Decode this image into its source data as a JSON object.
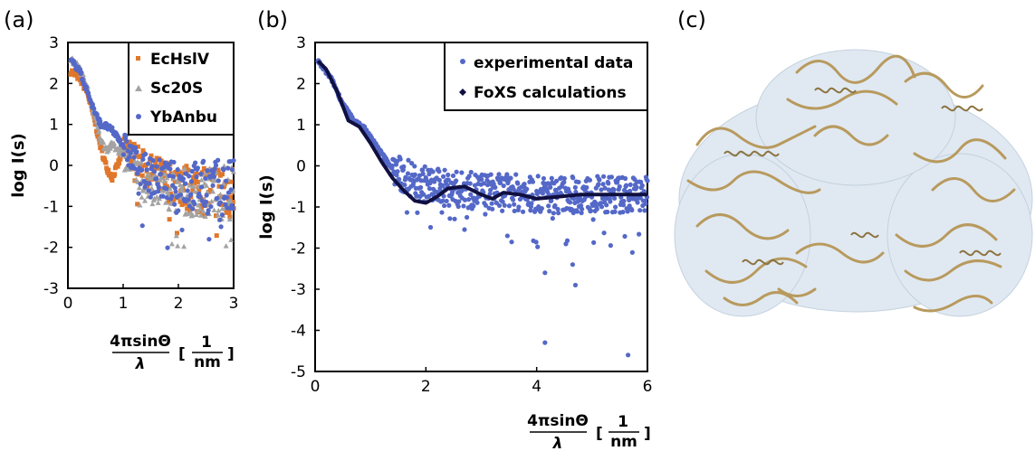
{
  "figure": {
    "panel_a_label": "(a)",
    "panel_b_label": "(b)",
    "panel_c_label": "(c)",
    "xlabel_numerator": "4πsinΘ",
    "xlabel_denominator": "λ",
    "xlabel_unit_open": "[",
    "xlabel_unit_numerator": "1",
    "xlabel_unit_denominator": "nm",
    "xlabel_unit_close": "]",
    "panel_c_image": "protein-ribbon-structure-with-surface"
  },
  "colors": {
    "EcHslV": "#e0772b",
    "Sc20S": "#a3a3a3",
    "YbAnbu": "#5468c8",
    "experimental": "#5468c8",
    "FoXS": "#101040",
    "protein": "#c9b07a",
    "surface": "#c8d8e8"
  },
  "chart_data": [
    {
      "panel": "(a)",
      "type": "scatter",
      "ylabel": "log I(s)",
      "xlim": [
        0,
        3
      ],
      "ylim": [
        -3,
        3
      ],
      "x_ticks": [
        "0",
        "1",
        "2",
        "3"
      ],
      "y_ticks": [
        "-3",
        "-2",
        "-1",
        "0",
        "1",
        "2",
        "3"
      ],
      "legend": "top-right",
      "series": [
        {
          "name": "EcHslV",
          "marker": "square",
          "x": [
            0.05,
            0.2,
            0.35,
            0.5,
            0.6,
            0.7,
            0.8,
            0.9,
            1.0,
            1.1,
            1.2,
            1.4,
            1.6,
            1.8,
            2.0,
            2.2,
            2.4,
            2.6,
            2.8,
            3.0
          ],
          "y": [
            2.3,
            2.15,
            1.8,
            1.0,
            0.4,
            -0.05,
            -0.3,
            0.0,
            0.35,
            0.4,
            0.2,
            -0.1,
            -0.25,
            -0.35,
            -0.5,
            -0.55,
            -0.6,
            -0.6,
            -0.6,
            -0.6
          ]
        },
        {
          "name": "Sc20S",
          "marker": "triangle",
          "x": [
            0.05,
            0.2,
            0.35,
            0.5,
            0.6,
            0.7,
            0.8,
            0.9,
            1.0,
            1.1,
            1.2,
            1.4,
            1.6,
            1.8,
            2.0,
            2.2,
            2.4,
            2.6,
            2.8,
            3.0
          ],
          "y": [
            2.6,
            2.4,
            1.9,
            1.1,
            0.6,
            0.4,
            0.5,
            0.4,
            0.3,
            0.1,
            -0.05,
            -0.3,
            -0.45,
            -0.55,
            -0.6,
            -0.65,
            -0.65,
            -0.65,
            -0.65,
            -0.65
          ]
        },
        {
          "name": "YbAnbu",
          "marker": "circle",
          "x": [
            0.05,
            0.2,
            0.35,
            0.5,
            0.6,
            0.7,
            0.8,
            0.9,
            1.0,
            1.1,
            1.2,
            1.4,
            1.6,
            1.8,
            2.0,
            2.2,
            2.4,
            2.6,
            2.8,
            3.0
          ],
          "y": [
            2.55,
            2.35,
            1.8,
            1.25,
            1.0,
            0.95,
            0.85,
            0.7,
            0.5,
            0.3,
            0.1,
            -0.15,
            -0.3,
            -0.4,
            -0.45,
            -0.5,
            -0.5,
            -0.55,
            -0.55,
            -0.6
          ]
        }
      ]
    },
    {
      "panel": "(b)",
      "type": "scatter",
      "ylabel": "log I(s)",
      "xlim": [
        0,
        6
      ],
      "ylim": [
        -5,
        3
      ],
      "x_ticks": [
        "0",
        "2",
        "4",
        "6"
      ],
      "y_ticks": [
        "-5",
        "-4",
        "-3",
        "-2",
        "-1",
        "0",
        "1",
        "2",
        "3"
      ],
      "legend": "top-right",
      "series": [
        {
          "name": "experimental data",
          "marker": "circle",
          "x": [
            0.05,
            0.3,
            0.5,
            0.7,
            0.9,
            1.1,
            1.3,
            1.5,
            1.7,
            1.9,
            2.1,
            2.4,
            2.7,
            3.0,
            3.3,
            3.6,
            3.9,
            4.2,
            4.5,
            4.8,
            5.1,
            5.4,
            5.7,
            6.0
          ],
          "y": [
            2.55,
            2.1,
            1.5,
            1.1,
            0.9,
            0.5,
            0.1,
            -0.2,
            -0.3,
            -0.4,
            -0.5,
            -0.55,
            -0.6,
            -0.6,
            -0.65,
            -0.65,
            -0.7,
            -0.7,
            -0.7,
            -0.7,
            -0.7,
            -0.7,
            -0.7,
            -0.7
          ],
          "outliers_x": [
            4.15,
            4.15,
            4.65,
            4.7,
            5.65
          ],
          "outliers_y": [
            -4.3,
            -2.6,
            -2.4,
            -2.9,
            -4.6
          ]
        },
        {
          "name": "FoXS calculations",
          "marker": "line",
          "x": [
            0.05,
            0.2,
            0.4,
            0.6,
            0.8,
            1.0,
            1.2,
            1.4,
            1.6,
            1.8,
            2.0,
            2.2,
            2.4,
            2.7,
            3.0,
            3.2,
            3.4,
            3.7,
            4.0,
            4.4,
            4.8,
            5.2,
            5.6,
            6.0
          ],
          "y": [
            2.55,
            2.35,
            1.8,
            1.1,
            0.95,
            0.55,
            0.1,
            -0.3,
            -0.6,
            -0.85,
            -0.9,
            -0.75,
            -0.55,
            -0.5,
            -0.7,
            -0.8,
            -0.65,
            -0.7,
            -0.8,
            -0.75,
            -0.7,
            -0.7,
            -0.7,
            -0.7
          ]
        }
      ]
    }
  ]
}
